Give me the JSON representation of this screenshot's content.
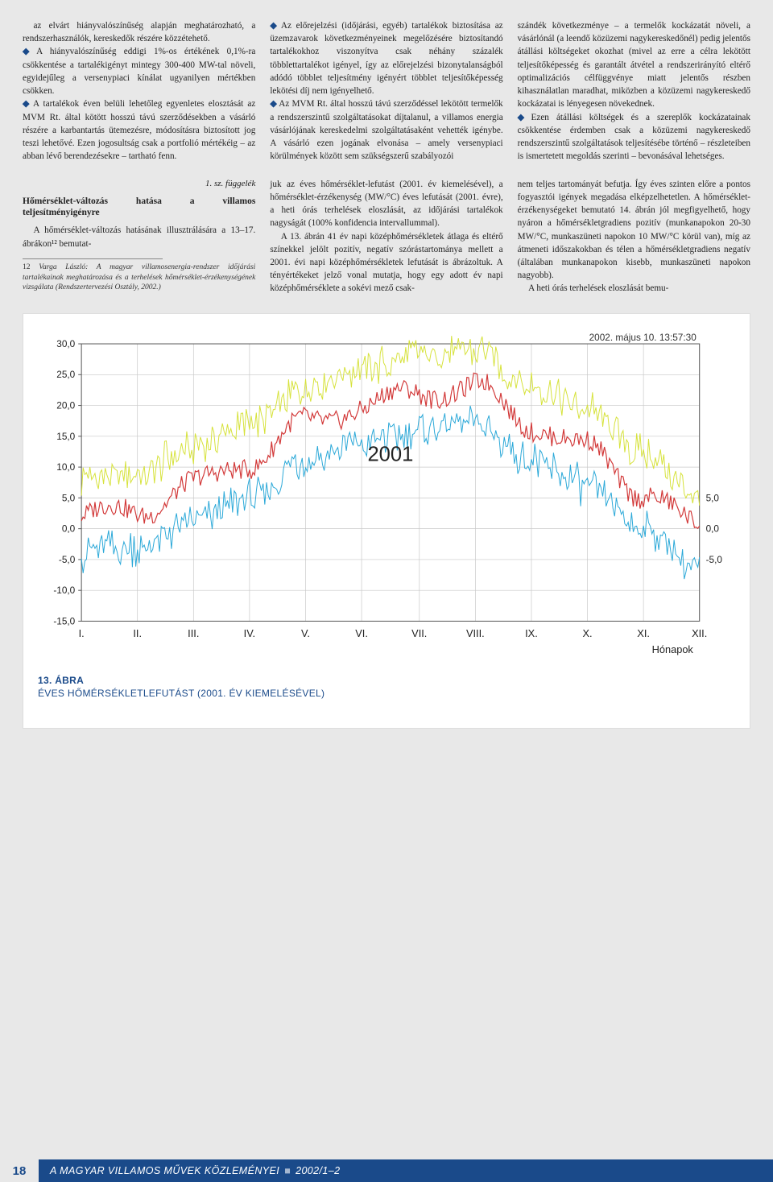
{
  "columns_top": {
    "col1": {
      "p1_indent": "az elvárt hiányvalószínűség alapján meghatározható, a rendszerhasználók, kereskedők részére közzétehető.",
      "b1": "A hiányvalószínűség eddigi 1%-os értékének 0,1%-ra csökkentése a tartalékigényt mintegy 300-400 MW-tal növeli, egyidejűleg a versenypiaci kínálat ugyanilyen mértékben csökken.",
      "b2": "A tartalékok éven belüli lehetőleg egyenletes elosztását az MVM Rt. által kötött hosszú távú szerződésekben a vásárló részére a karbantartás ütemezésre, módosításra biztosított jog teszi lehetővé. Ezen jogosultság csak a portfolió mértékéig – az abban lévő berendezésekre – tartható fenn."
    },
    "col2": {
      "b1": "Az előrejelzési (időjárási, egyéb) tartalékok biztosítása az üzemzavarok következményeinek megelőzésére biztosítandó tartalékokhoz viszonyítva csak néhány százalék többlettartalékot igényel, így az előrejelzési bizonytalanságból adódó többlet teljesítmény igényért többlet teljesítőképesség lekötési díj nem igényelhető.",
      "b2": "Az MVM Rt. által hosszú távú szerződéssel lekötött termelők a rendszerszintű szolgáltatásokat díjtalanul, a villamos energia vásárlójának kereskedelmi szolgáltatásaként vehették igénybe. A vásárló ezen jogának elvonása – amely versenypiaci körülmények között sem szükségszerű szabályozói"
    },
    "col3": {
      "p1": "szándék következménye – a termelők kockázatát növeli, a vásárlónál (a leendő közüzemi nagykereskedőnél) pedig jelentős átállási költségeket okozhat (mivel az erre a célra lekötött teljesítőképesség és garantált átvétel a rendszerirányító eltérő optimalizációs célfüggvénye miatt jelentős részben kihasználatlan maradhat, miközben a közüzemi nagykereskedő kockázatai is lényegesen növekednek.",
      "b1": "Ezen átállási költségek és a szereplők kockázatainak csökkentése érdemben csak a közüzemi nagykereskedő rendszerszintű szolgáltatások teljesítésébe történő – részleteiben is ismertetett megoldás szerinti – bevonásával lehetséges."
    }
  },
  "columns_mid": {
    "col1": {
      "appendix": "1. sz. függelék",
      "heading": "Hőmérséklet-változás hatása a villamos teljesítményigényre",
      "p1": "A hőmérséklet-változás hatásának illusztrálására a 13–17. ábrákon¹² bemutat-",
      "footnote_num": "12",
      "footnote": "Varga László: A magyar villamosenergia-rendszer időjárási tartalékainak meghatározása és a terhelések hőmérséklet-érzékenységének vizsgálata (Rendszertervezési Osztály, 2002.)"
    },
    "col2": {
      "p1": "juk az éves hőmérséklet-lefutást (2001. év kiemelésével), a hőmérséklet-érzékenység (MW/°C) éves lefutását (2001. évre), a heti órás terhelések eloszlását, az időjárási tartalékok nagyságát (100% konfidencia intervallummal).",
      "p2": "A 13. ábrán 41 év napi középhőmérsékletek átlaga és eltérő színekkel jelölt pozitív, negatív szórástartománya mellett a 2001. évi napi középhőmérsékletek lefutását is ábrázoltuk. A tényértékeket jelző vonal mutatja, hogy egy adott év napi középhőmérséklete a sokévi mező csak-"
    },
    "col3": {
      "p1": "nem teljes tartományát befutja. Így éves szinten előre a pontos fogyasztói igények megadása elképzelhetetlen. A hőmérséklet-érzékenységeket bemutató 14. ábrán jól megfigyelhető, hogy nyáron a hőmérsékletgradiens pozitív (munkanapokon 20-30 MW/°C, munkaszüneti napokon 10 MW/°C körül van), míg az átmeneti időszakokban és télen a hőmérsékletgradiens negatív (általában munkanapokon kisebb, munkaszüneti napokon nagyobb).",
      "p2": "A heti órás terhelések eloszlását bemu-"
    }
  },
  "chart": {
    "type": "line",
    "timestamp": "2002. május 10. 13:57:30",
    "annotation": "2001",
    "xlabel": "Hónapok",
    "x_categories": [
      "I.",
      "II.",
      "III.",
      "IV.",
      "V.",
      "VI.",
      "VII.",
      "VIII.",
      "IX.",
      "X.",
      "XI.",
      "XII."
    ],
    "ylim": [
      -15,
      30
    ],
    "ytick_step": 5,
    "right_ticks": [
      5.0,
      0.0,
      -5.0
    ],
    "colors": {
      "upper": "#d6e23a",
      "lower": "#2aa8d8",
      "mid": "#d23838",
      "grid": "#c8c8c8",
      "axis": "#555555",
      "bg": "#ffffff"
    },
    "series_mid_monthly": [
      2,
      3,
      7,
      11,
      17,
      20,
      22,
      23,
      17,
      13,
      6,
      0
    ],
    "band_half_width_base": 6,
    "noise_amp_band": 4.5,
    "noise_amp_mid": 3.2,
    "fig_num": "13. ÁBRA",
    "fig_title": "ÉVES HŐMÉRSÉKLETLEFUTÁST (2001. ÉV KIEMELÉSÉVEL)"
  },
  "footer": {
    "page_num": "18",
    "journal": "A MAGYAR VILLAMOS MŰVEK KÖZLEMÉNYEI",
    "issue": "2002/1–2"
  }
}
